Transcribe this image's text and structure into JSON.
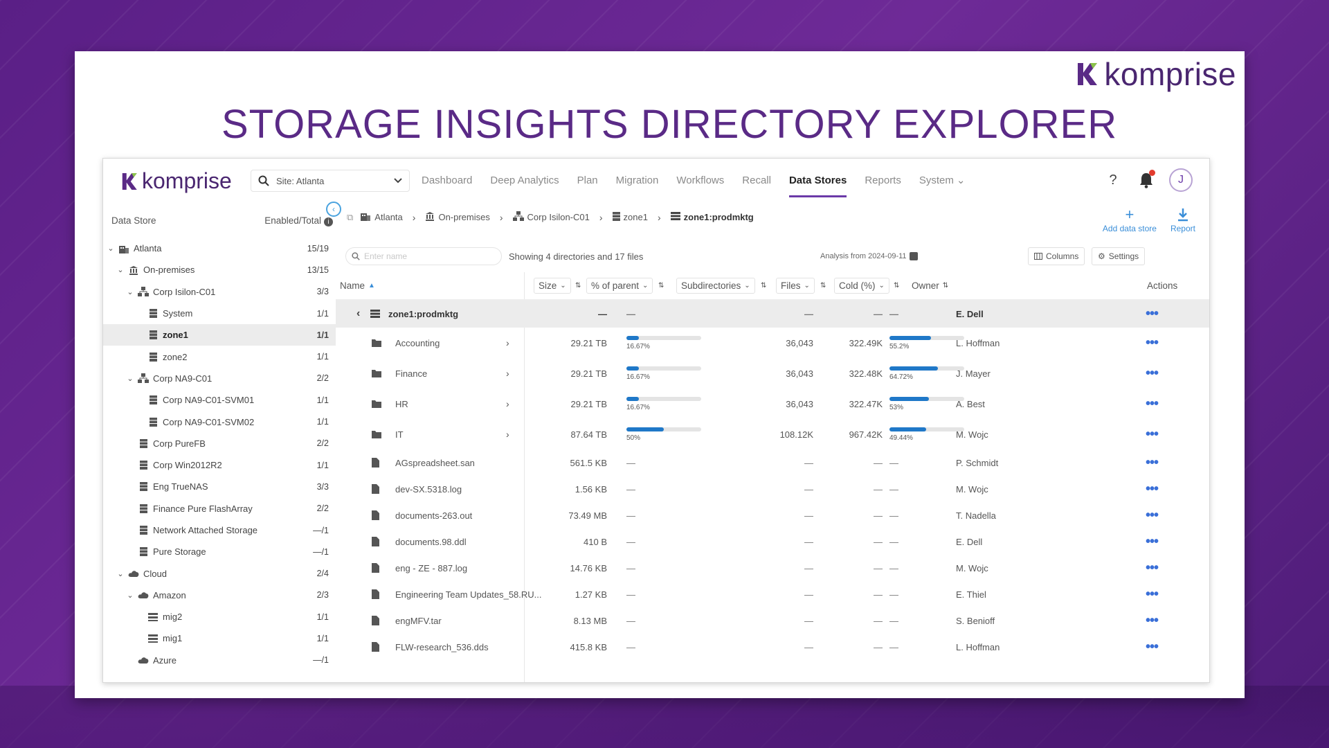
{
  "slide": {
    "brand": "komprise",
    "title": "STORAGE INSIGHTS DIRECTORY EXPLORER"
  },
  "app": {
    "brand": "komprise",
    "site_select": "Site: Atlanta",
    "nav": [
      "Dashboard",
      "Deep Analytics",
      "Plan",
      "Migration",
      "Workflows",
      "Recall",
      "Data Stores",
      "Reports",
      "System"
    ],
    "active_nav": "Data Stores",
    "help": "?",
    "avatar": "J"
  },
  "sidebar": {
    "header_left": "Data Store",
    "header_right": "Enabled/Total",
    "items": [
      {
        "label": "Atlanta",
        "count": "15/19",
        "indent": 0,
        "caret": "v",
        "icon": "building-icon"
      },
      {
        "label": "On-premises",
        "count": "13/15",
        "indent": 1,
        "caret": "v",
        "icon": "bank-icon"
      },
      {
        "label": "Corp Isilon-C01",
        "count": "3/3",
        "indent": 2,
        "caret": "v",
        "icon": "cluster-icon"
      },
      {
        "label": "System",
        "count": "1/1",
        "indent": 3,
        "caret": "",
        "icon": "storage-icon"
      },
      {
        "label": "zone1",
        "count": "1/1",
        "indent": 3,
        "caret": "",
        "icon": "storage-icon",
        "selected": true
      },
      {
        "label": "zone2",
        "count": "1/1",
        "indent": 3,
        "caret": "",
        "icon": "storage-icon"
      },
      {
        "label": "Corp NA9-C01",
        "count": "2/2",
        "indent": 2,
        "caret": "v",
        "icon": "cluster-icon"
      },
      {
        "label": "Corp NA9-C01-SVM01",
        "count": "1/1",
        "indent": 3,
        "caret": "",
        "icon": "storage-icon"
      },
      {
        "label": "Corp NA9-C01-SVM02",
        "count": "1/1",
        "indent": 3,
        "caret": "",
        "icon": "storage-icon"
      },
      {
        "label": "Corp PureFB",
        "count": "2/2",
        "indent": 2,
        "caret": "",
        "icon": "storage-icon"
      },
      {
        "label": "Corp Win2012R2",
        "count": "1/1",
        "indent": 2,
        "caret": "",
        "icon": "storage-icon"
      },
      {
        "label": "Eng TrueNAS",
        "count": "3/3",
        "indent": 2,
        "caret": "",
        "icon": "storage-icon"
      },
      {
        "label": "Finance Pure FlashArray",
        "count": "2/2",
        "indent": 2,
        "caret": "",
        "icon": "storage-icon"
      },
      {
        "label": "Network Attached Storage",
        "count": "—/1",
        "indent": 2,
        "caret": "",
        "icon": "storage-icon"
      },
      {
        "label": "Pure Storage",
        "count": "—/1",
        "indent": 2,
        "caret": "",
        "icon": "storage-icon"
      },
      {
        "label": "Cloud",
        "count": "2/4",
        "indent": 1,
        "caret": "v",
        "icon": "cloud-icon"
      },
      {
        "label": "Amazon",
        "count": "2/3",
        "indent": 2,
        "caret": "v",
        "icon": "cloud-icon"
      },
      {
        "label": "mig2",
        "count": "1/1",
        "indent": 3,
        "caret": "",
        "icon": "bucket-icon"
      },
      {
        "label": "mig1",
        "count": "1/1",
        "indent": 3,
        "caret": "",
        "icon": "bucket-icon"
      },
      {
        "label": "Azure",
        "count": "—/1",
        "indent": 2,
        "caret": "",
        "icon": "cloud-icon"
      }
    ]
  },
  "breadcrumb": [
    {
      "label": "Atlanta",
      "icon": "building-icon"
    },
    {
      "label": "On-premises",
      "icon": "bank-icon"
    },
    {
      "label": "Corp Isilon-C01",
      "icon": "cluster-icon"
    },
    {
      "label": "zone1",
      "icon": "storage-icon"
    },
    {
      "label": "zone1:prodmktg",
      "icon": "share-icon"
    }
  ],
  "actions": {
    "add": "Add data store",
    "report": "Report"
  },
  "toolbar": {
    "search_placeholder": "Enter name",
    "showing": "Showing 4 directories and 17 files",
    "analysis": "Analysis from 2024-09-11",
    "columns": "Columns",
    "settings": "Settings"
  },
  "table": {
    "headers": {
      "name": "Name",
      "size": "Size",
      "pct": "% of parent",
      "sub": "Subdirectories",
      "files": "Files",
      "cold": "Cold (%)",
      "owner": "Owner",
      "actions": "Actions"
    },
    "parent": {
      "name": "zone1:prodmktg",
      "size": "—",
      "pct": "—",
      "sub": "—",
      "files": "—",
      "cold": "—",
      "owner": "E. Dell"
    },
    "dirs": [
      {
        "name": "Accounting",
        "size": "29.21 TB",
        "pct": 16.67,
        "pct_label": "16.67%",
        "sub": "36,043",
        "files": "322.49K",
        "cold": 55.2,
        "cold_label": "55.2%",
        "owner": "L. Hoffman"
      },
      {
        "name": "Finance",
        "size": "29.21 TB",
        "pct": 16.67,
        "pct_label": "16.67%",
        "sub": "36,043",
        "files": "322.48K",
        "cold": 64.72,
        "cold_label": "64.72%",
        "owner": "J. Mayer"
      },
      {
        "name": "HR",
        "size": "29.21 TB",
        "pct": 16.67,
        "pct_label": "16.67%",
        "sub": "36,043",
        "files": "322.47K",
        "cold": 53,
        "cold_label": "53%",
        "owner": "A. Best"
      },
      {
        "name": "IT",
        "size": "87.64 TB",
        "pct": 50,
        "pct_label": "50%",
        "sub": "108.12K",
        "files": "967.42K",
        "cold": 49.44,
        "cold_label": "49.44%",
        "owner": "M. Wojc"
      }
    ],
    "files": [
      {
        "name": "AGspreadsheet.san",
        "size": "561.5 KB",
        "owner": "P. Schmidt"
      },
      {
        "name": "dev-SX.5318.log",
        "size": "1.56 KB",
        "owner": "M. Wojc"
      },
      {
        "name": "documents-263.out",
        "size": "73.49 MB",
        "owner": "T. Nadella"
      },
      {
        "name": "documents.98.ddl",
        "size": "410 B",
        "owner": "E. Dell"
      },
      {
        "name": "eng - ZE - 887.log",
        "size": "14.76 KB",
        "owner": "M. Wojc"
      },
      {
        "name": "Engineering Team Updates_58.RU...",
        "size": "1.27 KB",
        "owner": "E. Thiel"
      },
      {
        "name": "engMFV.tar",
        "size": "8.13 MB",
        "owner": "S. Benioff"
      },
      {
        "name": "FLW-research_536.dds",
        "size": "415.8 KB",
        "owner": "L. Hoffman"
      }
    ],
    "dash": "—",
    "actions_glyph": "•••"
  }
}
